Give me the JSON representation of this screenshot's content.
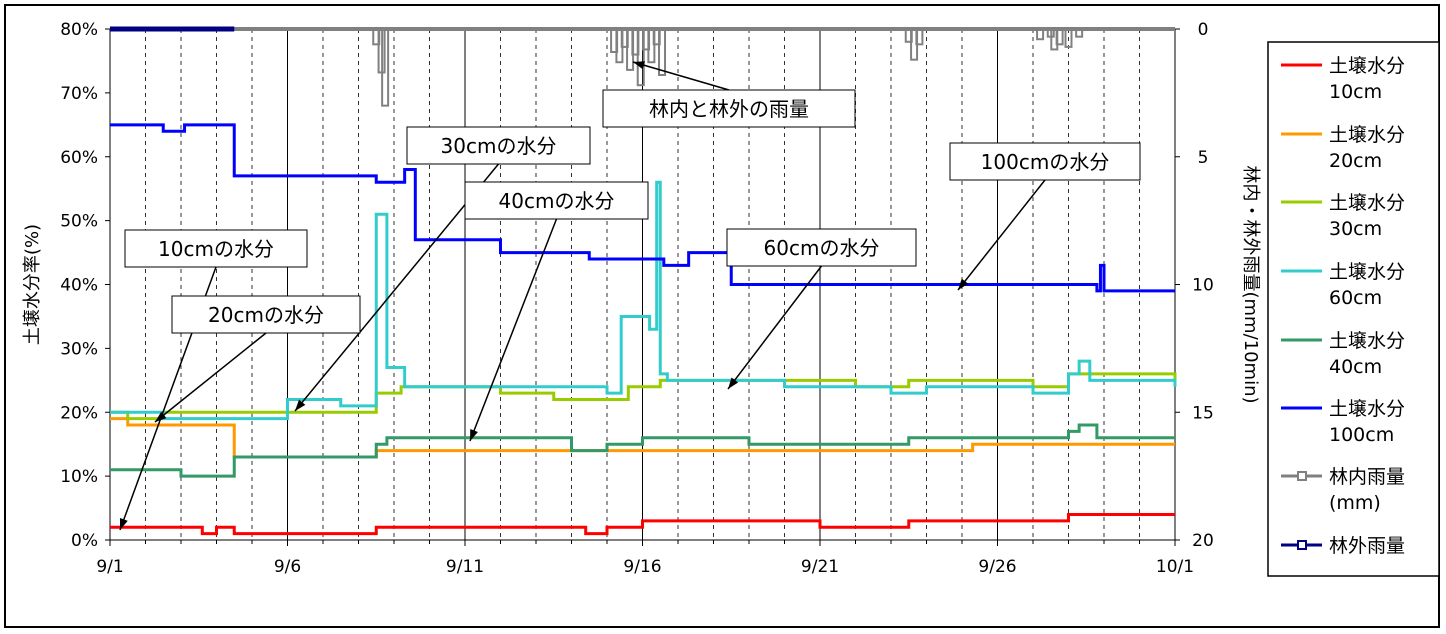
{
  "chart_data": {
    "type": "line",
    "ylabel": "土壌水分率(%)",
    "y2label": "林内・林外雨量(mm/10min)",
    "x_ticks": [
      "9/1",
      "9/6",
      "9/11",
      "9/16",
      "9/21",
      "9/26",
      "10/1"
    ],
    "xlim": [
      "9/1",
      "10/1"
    ],
    "y_ticks": [
      "0%",
      "10%",
      "20%",
      "30%",
      "40%",
      "50%",
      "60%",
      "70%",
      "80%"
    ],
    "ylim": [
      0,
      80
    ],
    "y2_ticks": [
      "0",
      "5",
      "10",
      "15",
      "20"
    ],
    "y2lim": [
      20,
      0
    ],
    "grid": "vertical dashed daily, solid every 5 days",
    "legend_position": "right",
    "series": [
      {
        "name": "土壌水分",
        "name2": "10cm",
        "color": "#ff0000",
        "x": [
          1,
          3.1,
          3.6,
          4,
          4.5,
          6.5,
          8.5,
          14,
          14.4,
          15,
          16,
          18.5,
          21,
          23.5,
          26,
          28,
          31
        ],
        "y": [
          2,
          2,
          1,
          2,
          1,
          1,
          2,
          2,
          1,
          2,
          3,
          3,
          2,
          3,
          3,
          4,
          4
        ]
      },
      {
        "name": "土壌水分",
        "name2": "20cm",
        "color": "#ff9900",
        "x": [
          1,
          1.5,
          4.5,
          6.5,
          7.7,
          8.5,
          12,
          15,
          25,
          25.3,
          28.2,
          31
        ],
        "y": [
          19,
          18,
          13,
          13,
          13,
          14,
          14,
          14,
          14,
          15,
          15,
          15
        ]
      },
      {
        "name": "土壌水分",
        "name2": "30cm",
        "color": "#99cc00",
        "x": [
          1,
          1.5,
          2.5,
          4.5,
          7.5,
          8.5,
          9.2,
          12,
          13.5,
          15,
          15.6,
          16.5,
          18.5,
          22,
          23.5,
          25.5,
          27,
          28,
          31
        ],
        "y": [
          20,
          19,
          20,
          20,
          20,
          23,
          24,
          23,
          22,
          22,
          24,
          25,
          25,
          24,
          25,
          25,
          24,
          26,
          25
        ]
      },
      {
        "name": "土壌水分",
        "name2": "60cm",
        "color": "#33cccc",
        "x": [
          1,
          1.5,
          2.5,
          4.5,
          6,
          7.5,
          8.5,
          8.5,
          8.8,
          9.3,
          12,
          15,
          15.4,
          16.2,
          16.4,
          16.5,
          16.7,
          17,
          20,
          21,
          23,
          24,
          27,
          28,
          28.3,
          28.6,
          31
        ],
        "y": [
          20,
          20,
          19,
          19,
          22,
          21,
          21,
          51,
          27,
          24,
          24,
          23,
          35,
          33,
          56,
          26,
          25,
          25,
          24,
          24,
          23,
          24,
          23,
          26,
          28,
          25,
          24
        ]
      },
      {
        "name": "土壌水分",
        "name2": "40cm",
        "color": "#339966",
        "x": [
          1,
          2,
          3,
          4.5,
          8,
          8.5,
          8.8,
          11,
          14,
          15,
          16,
          17,
          19,
          23.5,
          26,
          28,
          28.3,
          28.8,
          31
        ],
        "y": [
          11,
          11,
          10,
          13,
          13,
          15,
          16,
          16,
          14,
          15,
          16,
          16,
          15,
          16,
          16,
          17,
          18,
          16,
          16
        ]
      },
      {
        "name": "土壌水分",
        "name2": "100cm",
        "color": "#0000ff",
        "x": [
          1,
          1.8,
          2.5,
          3.1,
          4.5,
          4.5,
          7.5,
          8.5,
          9.3,
          9.6,
          10.5,
          12,
          14.5,
          16.6,
          16.8,
          17.3,
          18.5,
          28.8,
          28.9,
          29,
          31
        ],
        "y": [
          65,
          65,
          64,
          65,
          64,
          57,
          57,
          56,
          58,
          47,
          47,
          45,
          44,
          43,
          43,
          45,
          40,
          39,
          43,
          39,
          39
        ]
      },
      {
        "name": "林内雨量",
        "name2": "(mm)",
        "color": "#808080",
        "x": [
          8.5,
          8.65,
          8.75,
          15.2,
          15.35,
          15.5,
          15.65,
          15.8,
          15.95,
          16.1,
          16.25,
          16.4,
          16.55,
          23.5,
          23.65,
          23.8,
          27.2,
          27.5,
          27.6,
          27.75,
          28.0,
          28.3
        ],
        "y": [
          0.6,
          1.7,
          3.0,
          0.9,
          1.3,
          0.7,
          1.6,
          1.0,
          2.2,
          0.8,
          1.3,
          0.6,
          1.8,
          0.5,
          1.2,
          0.6,
          0.4,
          0.3,
          0.8,
          0.6,
          0.7,
          0.3
        ]
      },
      {
        "name": "林外雨量",
        "name2": "",
        "color": "#000080",
        "x": [
          1,
          4.5
        ],
        "y": [
          0,
          0
        ]
      }
    ],
    "annotations": [
      {
        "text": "林内と林外の雨量"
      },
      {
        "text": "30cmの水分"
      },
      {
        "text": "40cmの水分"
      },
      {
        "text": "10cmの水分"
      },
      {
        "text": "20cmの水分"
      },
      {
        "text": "60cmの水分"
      },
      {
        "text": "100cmの水分"
      }
    ]
  }
}
